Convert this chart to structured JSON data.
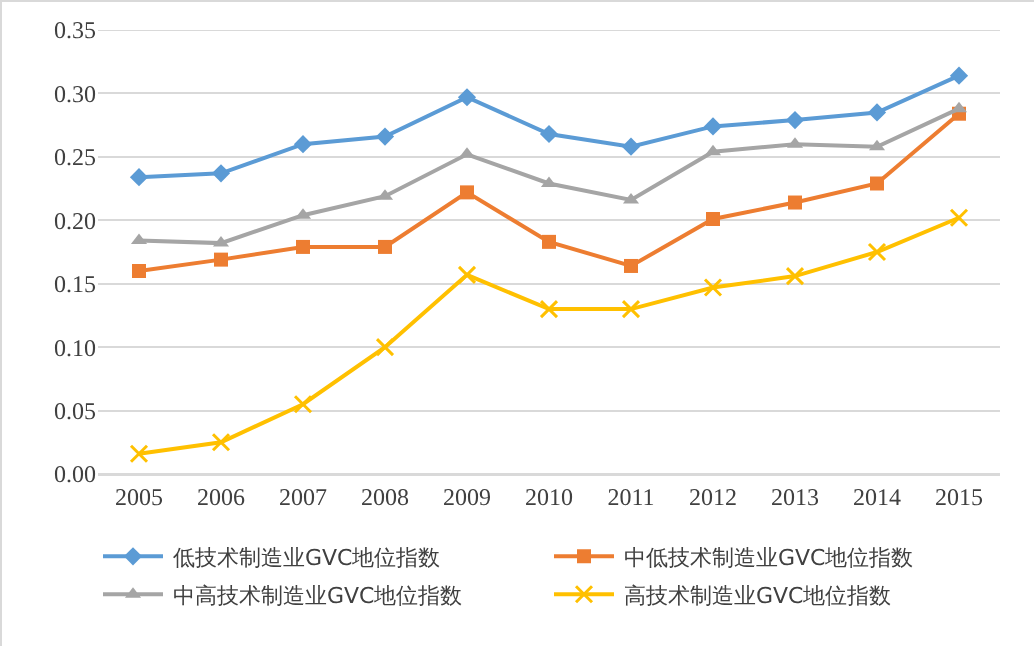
{
  "chart_data": {
    "type": "line",
    "categories": [
      "2005",
      "2006",
      "2007",
      "2008",
      "2009",
      "2010",
      "2011",
      "2012",
      "2013",
      "2014",
      "2015"
    ],
    "ylim": [
      0,
      0.35
    ],
    "yticks": [
      {
        "value": 0,
        "label": "0.00"
      },
      {
        "value": 0.05,
        "label": "0.05"
      },
      {
        "value": 0.1,
        "label": "0.10"
      },
      {
        "value": 0.15,
        "label": "0.15"
      },
      {
        "value": 0.2,
        "label": "0.20"
      },
      {
        "value": 0.25,
        "label": "0.25"
      },
      {
        "value": 0.3,
        "label": "0.30"
      },
      {
        "value": 0.35,
        "label": "0.35"
      }
    ],
    "grid": "y",
    "legend": "bottom",
    "series": [
      {
        "name": "低技术制造业GVC地位指数",
        "color": "#5b9bd5",
        "marker": "diamond",
        "values": [
          0.234,
          0.237,
          0.26,
          0.266,
          0.297,
          0.268,
          0.258,
          0.274,
          0.279,
          0.285,
          0.314
        ]
      },
      {
        "name": "中低技术制造业GVC地位指数",
        "color": "#ed7d31",
        "marker": "square",
        "values": [
          0.16,
          0.169,
          0.179,
          0.179,
          0.222,
          0.183,
          0.164,
          0.201,
          0.214,
          0.229,
          0.284
        ]
      },
      {
        "name": "中高技术制造业GVC地位指数",
        "color": "#a5a5a5",
        "marker": "triangle",
        "values": [
          0.184,
          0.182,
          0.204,
          0.219,
          0.252,
          0.229,
          0.216,
          0.254,
          0.26,
          0.258,
          0.288
        ]
      },
      {
        "name": "高技术制造业GVC地位指数",
        "color": "#ffc000",
        "marker": "cross",
        "values": [
          0.016,
          0.025,
          0.055,
          0.1,
          0.157,
          0.13,
          0.13,
          0.147,
          0.156,
          0.175,
          0.202
        ]
      }
    ]
  }
}
